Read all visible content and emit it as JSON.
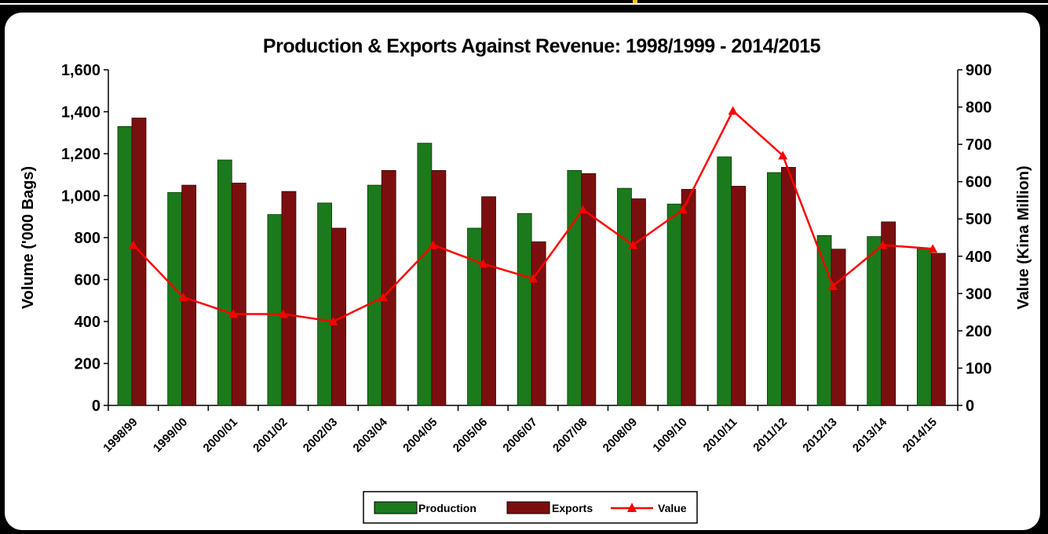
{
  "chart_data": {
    "type": "bar",
    "title": "Production & Exports Against Revenue: 1998/1999 - 2014/2015",
    "categories": [
      "1998/99",
      "1999/00",
      "2000/01",
      "2001/02",
      "2002/03",
      "2003/04",
      "2004/05",
      "2005/06",
      "2006/07",
      "2007/08",
      "2008/09",
      "1009/10",
      "2010/11",
      "2011/12",
      "2012/13",
      "2013/14",
      "2014/15"
    ],
    "series": [
      {
        "name": "Production",
        "type": "bar",
        "axis": "left",
        "color": "#1b7a1b",
        "values": [
          1330,
          1015,
          1170,
          910,
          965,
          1050,
          1250,
          845,
          915,
          1120,
          1035,
          960,
          1185,
          1110,
          810,
          805,
          750
        ]
      },
      {
        "name": "Exports",
        "type": "bar",
        "axis": "left",
        "color": "#7b0f0f",
        "values": [
          1370,
          1050,
          1060,
          1020,
          845,
          1120,
          1120,
          995,
          780,
          1105,
          985,
          1030,
          1045,
          1135,
          745,
          875,
          725
        ]
      },
      {
        "name": "Value",
        "type": "line",
        "axis": "right",
        "color": "#ff0000",
        "values": [
          430,
          290,
          245,
          245,
          225,
          290,
          430,
          380,
          340,
          525,
          430,
          525,
          790,
          670,
          320,
          430,
          420
        ]
      }
    ],
    "ylabel": "Volume ('000 Bags)",
    "y2label": "Value (Kina Million)",
    "ylim": [
      0,
      1600
    ],
    "y2lim": [
      0,
      900
    ],
    "yticks": [
      "0",
      "200",
      "400",
      "600",
      "800",
      "1,000",
      "1,200",
      "1,400",
      "1,600"
    ],
    "y2ticks": [
      "0",
      "100",
      "200",
      "300",
      "400",
      "500",
      "600",
      "700",
      "800",
      "900"
    ],
    "grid": false,
    "legend_position": "bottom-center"
  }
}
